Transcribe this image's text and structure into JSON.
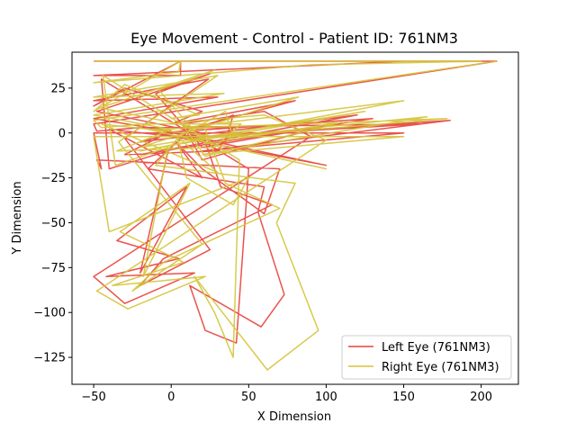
{
  "chart_data": {
    "type": "line",
    "title": "Eye Movement - Control - Patient ID: 761NM3",
    "xlabel": "X Dimension",
    "ylabel": "Y Dimension",
    "xlim": [
      -64,
      224
    ],
    "ylim": [
      -140,
      45
    ],
    "xticks": [
      -50,
      0,
      50,
      100,
      150,
      200
    ],
    "yticks": [
      -125,
      -100,
      -75,
      -50,
      -25,
      0,
      25
    ],
    "grid": false,
    "legend_position": "lower-right",
    "series": [
      {
        "name": "Left Eye (761NM3)",
        "color": "#e8403a",
        "x": [
          -50,
          210,
          150,
          -50,
          6,
          6,
          -50,
          -30,
          20,
          0,
          80,
          -20,
          120,
          -20,
          130,
          -10,
          100,
          -15,
          160,
          5,
          180,
          20,
          150,
          -50,
          -45,
          -48,
          70,
          60,
          20,
          3,
          20,
          -40,
          35,
          40,
          10,
          -15,
          60,
          56,
          73,
          58,
          12,
          22,
          42,
          50,
          -45,
          -40,
          -2,
          -20,
          10,
          -35,
          5,
          -42,
          15,
          -30,
          -50,
          90,
          60,
          7,
          20,
          40,
          100,
          20,
          -10,
          25,
          -48,
          20,
          32,
          65,
          -5,
          -20,
          25,
          -30,
          24,
          -50,
          30,
          -50,
          0,
          -30,
          30,
          40,
          -20,
          -48,
          -50,
          210
        ],
        "y": [
          40,
          40,
          40,
          32,
          32,
          40,
          15,
          25,
          12,
          5,
          18,
          -5,
          10,
          -12,
          8,
          0,
          -18,
          3,
          5,
          -3,
          7,
          -10,
          0,
          0,
          -20,
          -15,
          -20,
          -45,
          -20,
          -5,
          -25,
          2,
          -5,
          10,
          0,
          -20,
          -30,
          -44,
          -90,
          -108,
          -85,
          -110,
          -117,
          -20,
          30,
          -20,
          -10,
          -78,
          -30,
          -60,
          -70,
          -80,
          -78,
          -95,
          -80,
          -2,
          12,
          5,
          -15,
          -10,
          4,
          -8,
          22,
          33,
          12,
          0,
          -30,
          -40,
          -70,
          -85,
          -65,
          -3,
          30,
          18,
          20,
          8,
          1,
          -12,
          -10,
          3,
          3,
          1,
          5,
          40
        ]
      },
      {
        "name": "Right Eye (761NM3)",
        "color": "#d4c43a",
        "x": [
          -50,
          200,
          90,
          -50,
          5,
          6,
          -50,
          -30,
          18,
          0,
          82,
          -20,
          125,
          -20,
          150,
          -10,
          100,
          -15,
          178,
          10,
          165,
          20,
          150,
          -50,
          -47,
          -40,
          50,
          40,
          10,
          4,
          30,
          -45,
          40,
          35,
          5,
          -10,
          80,
          68,
          95,
          62,
          15,
          28,
          40,
          44,
          -44,
          -36,
          -2,
          -18,
          12,
          -33,
          8,
          -38,
          22,
          -28,
          -48,
          100,
          60,
          6,
          22,
          45,
          110,
          22,
          -8,
          28,
          -46,
          22,
          35,
          70,
          -5,
          -25,
          20,
          -34,
          30,
          -50,
          34,
          -50,
          0,
          -35,
          28,
          45,
          -18,
          -45,
          -50,
          210
        ],
        "y": [
          40,
          40,
          38,
          28,
          34,
          40,
          12,
          27,
          10,
          8,
          20,
          -8,
          12,
          -10,
          18,
          1,
          -20,
          2,
          8,
          -4,
          9,
          -12,
          -2,
          -2,
          -18,
          -55,
          -25,
          -40,
          -25,
          -2,
          -22,
          5,
          -3,
          12,
          -2,
          -18,
          -28,
          -50,
          -110,
          -132,
          -80,
          -100,
          -125,
          -15,
          32,
          -18,
          -8,
          -80,
          -28,
          -55,
          -72,
          -85,
          -80,
          -98,
          -88,
          -4,
          10,
          6,
          -13,
          -8,
          6,
          -6,
          24,
          35,
          14,
          2,
          -28,
          -42,
          -72,
          -88,
          -62,
          -5,
          32,
          20,
          22,
          10,
          2,
          -10,
          -8,
          5,
          5,
          3,
          7,
          40
        ]
      }
    ]
  }
}
